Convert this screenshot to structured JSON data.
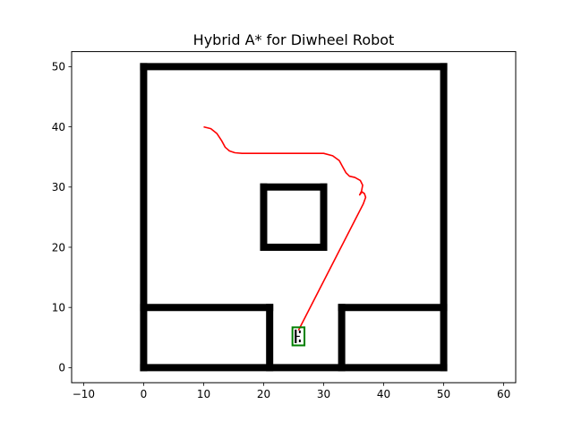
{
  "chart_data": {
    "type": "line",
    "title": "Hybrid A* for Diwheel Robot",
    "xlabel": "",
    "ylabel": "",
    "xlim": [
      -12,
      62
    ],
    "ylim": [
      -2.5,
      52.5
    ],
    "xticks": [
      -10,
      0,
      10,
      20,
      30,
      40,
      50,
      60
    ],
    "yticks": [
      0,
      10,
      20,
      30,
      40,
      50
    ],
    "xtick_labels": [
      "−10",
      "0",
      "10",
      "20",
      "30",
      "40",
      "50",
      "60"
    ],
    "ytick_labels": [
      "0",
      "10",
      "20",
      "30",
      "40",
      "50"
    ],
    "grid": false,
    "legend": false,
    "obstacles": {
      "color": "#000000",
      "segments": [
        {
          "x": [
            0,
            50
          ],
          "y": [
            0,
            0
          ]
        },
        {
          "x": [
            50,
            50
          ],
          "y": [
            0,
            50
          ]
        },
        {
          "x": [
            0,
            50
          ],
          "y": [
            50,
            50
          ]
        },
        {
          "x": [
            0,
            0
          ],
          "y": [
            0,
            50
          ]
        },
        {
          "x": [
            20,
            30
          ],
          "y": [
            20,
            20
          ]
        },
        {
          "x": [
            30,
            30
          ],
          "y": [
            20,
            30
          ]
        },
        {
          "x": [
            20,
            30
          ],
          "y": [
            30,
            30
          ]
        },
        {
          "x": [
            20,
            20
          ],
          "y": [
            20,
            30
          ]
        },
        {
          "x": [
            0,
            21
          ],
          "y": [
            10,
            10
          ]
        },
        {
          "x": [
            21,
            21
          ],
          "y": [
            0,
            10
          ]
        },
        {
          "x": [
            33,
            50
          ],
          "y": [
            10,
            10
          ]
        },
        {
          "x": [
            33,
            33
          ],
          "y": [
            0,
            10
          ]
        }
      ]
    },
    "path": {
      "color": "#ff0000",
      "x": [
        10,
        11.2,
        12.2,
        13,
        13.6,
        14.3,
        15.2,
        16.4,
        20,
        25,
        30,
        31.5,
        32.6,
        33.2,
        33.7,
        34.3,
        35.2,
        36.1,
        36.5,
        36.3,
        36.0,
        36.4,
        36.8,
        37.0,
        36.6,
        25.8
      ],
      "y": [
        40,
        39.7,
        38.9,
        37.7,
        36.6,
        36.0,
        35.7,
        35.6,
        35.6,
        35.6,
        35.6,
        35.2,
        34.4,
        33.3,
        32.4,
        31.8,
        31.6,
        31.1,
        30.3,
        29.3,
        28.7,
        29.2,
        28.9,
        28.3,
        27.2,
        6.2
      ]
    },
    "robot": {
      "color": "#008000",
      "center": [
        25.8,
        5.2
      ],
      "width": 2.0,
      "length": 3.0,
      "wheel_color": "#000000"
    }
  }
}
